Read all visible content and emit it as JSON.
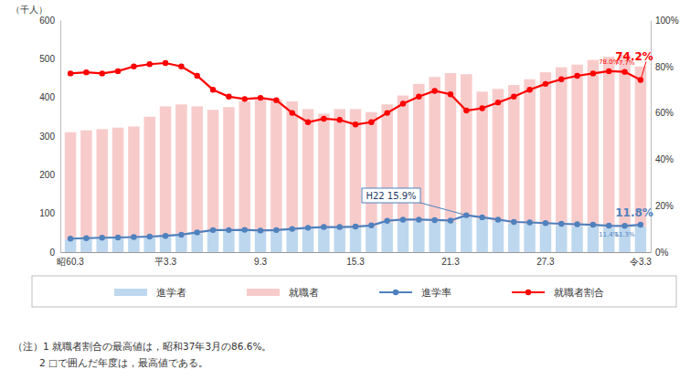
{
  "chart_data": {
    "type": "bar",
    "y_label": "（千人）",
    "categories": [
      "昭60.3",
      null,
      null,
      null,
      null,
      null,
      "平3.3",
      null,
      null,
      null,
      null,
      null,
      "9.3",
      null,
      null,
      null,
      null,
      null,
      "15.3",
      null,
      null,
      null,
      null,
      null,
      "21.3",
      null,
      null,
      null,
      null,
      null,
      "27.3",
      null,
      null,
      null,
      null,
      null,
      "令3.3"
    ],
    "stacked": true,
    "grid": false,
    "legend": "bottom",
    "ylim": [
      0,
      600
    ],
    "yticks": [
      0,
      100,
      200,
      300,
      400,
      500,
      600
    ],
    "y2lim": [
      0,
      100
    ],
    "y2ticks": [
      {
        "value": 0,
        "label": "0%"
      },
      {
        "value": 20,
        "label": "20%"
      },
      {
        "value": 40,
        "label": "40%"
      },
      {
        "value": 60,
        "label": "60%"
      },
      {
        "value": 80,
        "label": "80%"
      },
      {
        "value": 100,
        "label": "100%"
      }
    ],
    "series": [
      {
        "name": "進学者",
        "type": "bar",
        "color": "#bdd7ee",
        "values": [
          33,
          34,
          35,
          36,
          37,
          38,
          40,
          43,
          48,
          54,
          54,
          55,
          53,
          54,
          57,
          60,
          62,
          62,
          63,
          66,
          77,
          80,
          80,
          79,
          78,
          91,
          86,
          80,
          74,
          73,
          71,
          70,
          68,
          67,
          65,
          64,
          67
        ]
      },
      {
        "name": "就職者",
        "type": "bar",
        "color": "#f8cbcb",
        "values": [
          277,
          281,
          283,
          286,
          288,
          312,
          337,
          339,
          329,
          314,
          321,
          335,
          342,
          341,
          333,
          310,
          296,
          308,
          307,
          296,
          305,
          325,
          355,
          374,
          385,
          369,
          329,
          342,
          358,
          374,
          394,
          408,
          417,
          430,
          440,
          446,
          413
        ]
      },
      {
        "name": "進学率",
        "type": "line",
        "axis": "y2",
        "color": "#4f81bd",
        "marker": "circle",
        "values": [
          5.8,
          6.0,
          6.2,
          6.3,
          6.5,
          6.7,
          7.0,
          7.5,
          8.5,
          9.5,
          9.5,
          9.6,
          9.3,
          9.5,
          10.0,
          10.5,
          10.8,
          10.8,
          11.0,
          11.5,
          13.5,
          14.0,
          14.0,
          13.8,
          13.6,
          15.9,
          15.0,
          14.0,
          13.0,
          12.8,
          12.5,
          12.2,
          12.0,
          11.8,
          11.4,
          11.3,
          11.8
        ],
        "value_labels": [
          null,
          null,
          null,
          null,
          null,
          null,
          null,
          null,
          null,
          null,
          null,
          null,
          null,
          null,
          null,
          null,
          null,
          null,
          null,
          null,
          null,
          null,
          null,
          null,
          null,
          null,
          null,
          null,
          null,
          null,
          null,
          null,
          null,
          null,
          "11.4%",
          "11.3%",
          "11.8%"
        ]
      },
      {
        "name": "就職者割合",
        "type": "line",
        "axis": "y2",
        "color": "#ff0000",
        "marker": "circle",
        "values": [
          77,
          77.5,
          77,
          78,
          80,
          81,
          81.5,
          80,
          76,
          70,
          67,
          66,
          66.5,
          65.5,
          60,
          56,
          57.5,
          57,
          55,
          56,
          60,
          64,
          67,
          69.5,
          68,
          61,
          62,
          64.5,
          67,
          70,
          72.5,
          74.5,
          76,
          77,
          78.0,
          77.7,
          74.2
        ],
        "value_labels": [
          null,
          null,
          null,
          null,
          null,
          null,
          null,
          null,
          null,
          null,
          null,
          null,
          null,
          null,
          null,
          null,
          null,
          null,
          null,
          null,
          null,
          null,
          null,
          null,
          null,
          null,
          null,
          null,
          null,
          null,
          null,
          null,
          null,
          null,
          "78.0%",
          "77.7%",
          "74.2%"
        ]
      }
    ],
    "annotations": [
      {
        "text": "H22 15.9%",
        "series": 2
      }
    ],
    "notes": [
      "（注）1 就職者割合の最高値は，昭和37年3月の86.6%。",
      "2 □で囲んだ年度は，最高値である。"
    ]
  }
}
